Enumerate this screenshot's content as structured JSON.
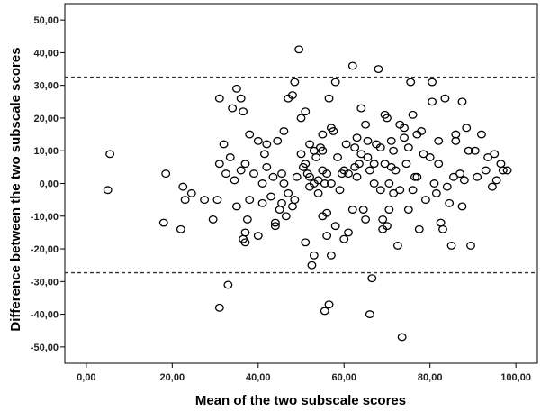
{
  "chart_data": {
    "type": "scatter",
    "title": "",
    "xlabel": "Mean of the two subscale scores",
    "ylabel": "Difference between the two subscale scores",
    "xlim": [
      -5,
      105
    ],
    "ylim": [
      -55,
      55
    ],
    "x_ticks": [
      0,
      20,
      40,
      60,
      80,
      100
    ],
    "y_ticks": [
      -50,
      -40,
      -30,
      -20,
      -10,
      0,
      10,
      20,
      30,
      40,
      50
    ],
    "x_tick_labels": [
      "0,00",
      "20,00",
      "40,00",
      "60,00",
      "80,00",
      "100,00"
    ],
    "y_tick_labels": [
      "-50,00",
      "-40,00",
      "-30,00",
      "-20,00",
      "-10,00",
      "0,00",
      "10,00",
      "20,00",
      "30,00",
      "40,00",
      "50,00"
    ],
    "reference_lines": [
      {
        "axis": "y",
        "value": 32.5,
        "style": "dashed"
      },
      {
        "axis": "y",
        "value": -27.3,
        "style": "dashed"
      }
    ],
    "grid": false,
    "legend": "none",
    "marker_color": "#000000",
    "points": [
      [
        5,
        -2
      ],
      [
        5.5,
        9
      ],
      [
        18,
        -12
      ],
      [
        18.5,
        3
      ],
      [
        22,
        -14
      ],
      [
        22.5,
        -1
      ],
      [
        23,
        -5
      ],
      [
        24.5,
        -3
      ],
      [
        27.5,
        -5
      ],
      [
        29.5,
        -11
      ],
      [
        30.5,
        -5
      ],
      [
        31,
        26
      ],
      [
        31,
        6
      ],
      [
        31,
        -38
      ],
      [
        32,
        12
      ],
      [
        32.5,
        3
      ],
      [
        33,
        -31
      ],
      [
        33.5,
        8
      ],
      [
        34,
        23
      ],
      [
        34.5,
        1
      ],
      [
        35,
        29
      ],
      [
        35,
        -7
      ],
      [
        36,
        4
      ],
      [
        36,
        26
      ],
      [
        36.5,
        22
      ],
      [
        36.5,
        -17
      ],
      [
        37,
        -15
      ],
      [
        37,
        -18
      ],
      [
        37,
        6
      ],
      [
        37.5,
        -11
      ],
      [
        38,
        15
      ],
      [
        38,
        -5
      ],
      [
        39,
        3
      ],
      [
        40,
        13
      ],
      [
        40,
        -16
      ],
      [
        41,
        0
      ],
      [
        41,
        -6
      ],
      [
        41.5,
        9
      ],
      [
        42,
        5
      ],
      [
        42,
        12
      ],
      [
        43,
        -4
      ],
      [
        43.5,
        2
      ],
      [
        44,
        -13
      ],
      [
        44,
        -12
      ],
      [
        44.5,
        13
      ],
      [
        45,
        -8
      ],
      [
        45.5,
        3
      ],
      [
        45.5,
        -6
      ],
      [
        46,
        16
      ],
      [
        46,
        0
      ],
      [
        46.5,
        -10
      ],
      [
        47,
        26
      ],
      [
        47,
        -3
      ],
      [
        48,
        27
      ],
      [
        48,
        -7
      ],
      [
        48.5,
        -5
      ],
      [
        48.5,
        31
      ],
      [
        49,
        2
      ],
      [
        49.5,
        41
      ],
      [
        50,
        9
      ],
      [
        50,
        20
      ],
      [
        50.5,
        5
      ],
      [
        51,
        -18
      ],
      [
        51,
        6
      ],
      [
        51,
        22
      ],
      [
        51.5,
        3
      ],
      [
        52,
        2
      ],
      [
        52,
        12
      ],
      [
        52,
        -1
      ],
      [
        52.5,
        -25
      ],
      [
        53,
        10
      ],
      [
        53,
        -22
      ],
      [
        53,
        0
      ],
      [
        53.5,
        8
      ],
      [
        54,
        1
      ],
      [
        54,
        -3
      ],
      [
        54.5,
        11
      ],
      [
        55,
        10
      ],
      [
        55,
        -10
      ],
      [
        55,
        4
      ],
      [
        55,
        15
      ],
      [
        55.5,
        0
      ],
      [
        55.5,
        -39
      ],
      [
        56,
        -16
      ],
      [
        56,
        3
      ],
      [
        56,
        -9
      ],
      [
        56.5,
        26
      ],
      [
        56.5,
        -37
      ],
      [
        57,
        -22
      ],
      [
        57,
        17
      ],
      [
        57,
        0
      ],
      [
        57.5,
        16
      ],
      [
        58,
        31
      ],
      [
        58,
        -13
      ],
      [
        58.5,
        8
      ],
      [
        59,
        -2
      ],
      [
        59.5,
        3
      ],
      [
        60,
        4
      ],
      [
        60,
        -17
      ],
      [
        60.5,
        12
      ],
      [
        61,
        3
      ],
      [
        61,
        -15
      ],
      [
        62,
        36
      ],
      [
        62,
        -8
      ],
      [
        62.5,
        11
      ],
      [
        62.5,
        5
      ],
      [
        63,
        14
      ],
      [
        63,
        2
      ],
      [
        63.5,
        6
      ],
      [
        64,
        23
      ],
      [
        64,
        9
      ],
      [
        64.5,
        -8
      ],
      [
        65,
        18
      ],
      [
        65,
        -11
      ],
      [
        65.5,
        13
      ],
      [
        65.5,
        8
      ],
      [
        66,
        -40
      ],
      [
        66,
        4
      ],
      [
        66.5,
        -29
      ],
      [
        67,
        0
      ],
      [
        67,
        6
      ],
      [
        67.5,
        12
      ],
      [
        68,
        35
      ],
      [
        68.5,
        11
      ],
      [
        68.5,
        -2
      ],
      [
        69,
        -11
      ],
      [
        69,
        -14
      ],
      [
        69.5,
        21
      ],
      [
        69.5,
        6
      ],
      [
        70,
        -13
      ],
      [
        70,
        20
      ],
      [
        70.5,
        0
      ],
      [
        70.5,
        -8
      ],
      [
        71,
        13
      ],
      [
        71,
        5
      ],
      [
        71.5,
        10
      ],
      [
        71.5,
        -3
      ],
      [
        72,
        4
      ],
      [
        72.5,
        -19
      ],
      [
        73,
        18
      ],
      [
        73,
        -2
      ],
      [
        73.5,
        -47
      ],
      [
        74,
        14
      ],
      [
        74,
        17
      ],
      [
        74.5,
        6
      ],
      [
        75,
        11
      ],
      [
        75,
        -8
      ],
      [
        75.5,
        31
      ],
      [
        76,
        21
      ],
      [
        76,
        -2
      ],
      [
        76.5,
        2
      ],
      [
        77,
        15
      ],
      [
        77,
        2
      ],
      [
        77.5,
        -14
      ],
      [
        78,
        16
      ],
      [
        78.5,
        9
      ],
      [
        79,
        -5
      ],
      [
        80,
        8
      ],
      [
        80.5,
        25
      ],
      [
        80.5,
        31
      ],
      [
        81,
        0
      ],
      [
        81.5,
        -3
      ],
      [
        82,
        13
      ],
      [
        82,
        6
      ],
      [
        82.5,
        -12
      ],
      [
        83,
        -14
      ],
      [
        83.5,
        26
      ],
      [
        84,
        -1
      ],
      [
        84.5,
        -6
      ],
      [
        85,
        -19
      ],
      [
        85.5,
        2
      ],
      [
        86,
        13
      ],
      [
        86,
        15
      ],
      [
        87,
        3
      ],
      [
        87.5,
        25
      ],
      [
        87.5,
        -7
      ],
      [
        88,
        1
      ],
      [
        88.5,
        17
      ],
      [
        89,
        10
      ],
      [
        89.5,
        -19
      ],
      [
        90.5,
        10
      ],
      [
        91,
        2
      ],
      [
        92,
        15
      ],
      [
        93,
        4
      ],
      [
        93.5,
        8
      ],
      [
        94.5,
        -1
      ],
      [
        95,
        9
      ],
      [
        95.5,
        1
      ],
      [
        96.5,
        6
      ],
      [
        97,
        4
      ],
      [
        98,
        4
      ]
    ]
  }
}
